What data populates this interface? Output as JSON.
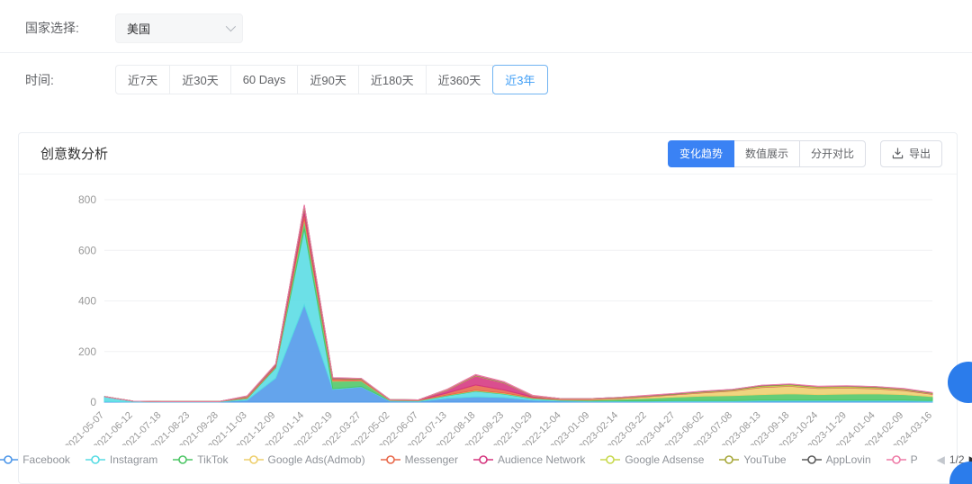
{
  "filters": {
    "country_label": "国家选择:",
    "country_value": "美国",
    "time_label": "时间:",
    "time_options": [
      "近7天",
      "近30天",
      "60 Days",
      "近90天",
      "近180天",
      "近360天",
      "近3年"
    ],
    "time_selected": "近3年"
  },
  "panel": {
    "title": "创意数分析",
    "view_tabs": [
      "变化趋势",
      "数值展示",
      "分开对比"
    ],
    "view_selected": "变化趋势",
    "export_label": "导出"
  },
  "legend": {
    "pagination": "1/2",
    "prev_icon": "◀",
    "next_icon": "▶"
  },
  "colors": {
    "accent_blue": "#3a82f4",
    "selected_time_blue": "#3f9ef6",
    "fab_blue": "#2b7ceb",
    "axis_text": "#999999",
    "gridline": "#f0f1f3",
    "axis_line": "#dcdfe6"
  },
  "chart_data": {
    "type": "area",
    "stacked": true,
    "title": "创意数分析",
    "xlabel": "",
    "ylabel": "",
    "ylim": [
      0,
      800
    ],
    "yticks": [
      0,
      200,
      400,
      600,
      800
    ],
    "grid": true,
    "legend_position": "bottom",
    "categories": [
      "2021-05-07",
      "2021-06-12",
      "2021-07-18",
      "2021-08-23",
      "2021-09-28",
      "2021-11-03",
      "2021-12-09",
      "2022-01-14",
      "2022-02-19",
      "2022-03-27",
      "2022-05-02",
      "2022-06-07",
      "2022-07-13",
      "2022-08-18",
      "2022-09-23",
      "2022-10-29",
      "2022-12-04",
      "2023-01-09",
      "2023-02-14",
      "2023-03-22",
      "2023-04-27",
      "2023-06-02",
      "2023-07-08",
      "2023-08-13",
      "2023-09-18",
      "2023-10-24",
      "2023-11-29",
      "2024-01-04",
      "2024-02-09",
      "2024-03-16"
    ],
    "series": [
      {
        "name": "Facebook",
        "color": "#4e97e9",
        "values": [
          2,
          1,
          1,
          1,
          1,
          8,
          95,
          385,
          50,
          60,
          4,
          3,
          15,
          21,
          18,
          8,
          4,
          3,
          3,
          3,
          3,
          3,
          3,
          4,
          4,
          4,
          4,
          4,
          4,
          3
        ]
      },
      {
        "name": "Instagram",
        "color": "#58dce4",
        "values": [
          20,
          3,
          1,
          1,
          1,
          6,
          40,
          300,
          3,
          2,
          2,
          2,
          10,
          22,
          14,
          6,
          3,
          2,
          2,
          2,
          3,
          3,
          3,
          4,
          4,
          4,
          4,
          4,
          4,
          3
        ]
      },
      {
        "name": "TikTok",
        "color": "#4ec666",
        "values": [
          0,
          0,
          0,
          0,
          0,
          2,
          4,
          36,
          30,
          22,
          1,
          1,
          2,
          2,
          2,
          2,
          2,
          3,
          6,
          10,
          14,
          18,
          20,
          22,
          25,
          22,
          24,
          25,
          22,
          16
        ]
      },
      {
        "name": "Google Ads(Admob)",
        "color": "#eecf6d",
        "values": [
          0,
          0,
          0,
          0,
          0,
          1,
          1,
          5,
          2,
          1,
          1,
          1,
          1,
          2,
          2,
          1,
          1,
          2,
          3,
          6,
          9,
          13,
          18,
          28,
          30,
          24,
          24,
          20,
          16,
          9
        ]
      },
      {
        "name": "Messenger",
        "color": "#e8684a",
        "values": [
          0,
          0,
          0,
          0,
          0,
          2,
          3,
          20,
          6,
          4,
          1,
          1,
          8,
          21,
          12,
          3,
          1,
          1,
          1,
          1,
          1,
          1,
          1,
          1,
          1,
          1,
          1,
          1,
          1,
          1
        ]
      },
      {
        "name": "Audience Network",
        "color": "#d5367f",
        "values": [
          0,
          0,
          0,
          0,
          0,
          2,
          4,
          25,
          2,
          1,
          1,
          1,
          12,
          36,
          28,
          4,
          1,
          1,
          1,
          1,
          1,
          1,
          1,
          1,
          1,
          1,
          1,
          1,
          1,
          1
        ]
      },
      {
        "name": "Google Adsense",
        "color": "#c8d94f",
        "values": [
          0,
          0,
          0,
          0,
          0,
          1,
          1,
          3,
          1,
          1,
          0,
          0,
          1,
          1,
          1,
          1,
          1,
          1,
          1,
          1,
          1,
          2,
          2,
          3,
          3,
          3,
          3,
          3,
          2,
          2
        ]
      },
      {
        "name": "YouTube",
        "color": "#a8a93c",
        "values": [
          0,
          0,
          0,
          0,
          0,
          1,
          1,
          2,
          1,
          1,
          0,
          0,
          1,
          1,
          1,
          1,
          1,
          1,
          1,
          1,
          1,
          1,
          1,
          2,
          2,
          2,
          2,
          2,
          2,
          1
        ]
      },
      {
        "name": "AppLovin",
        "color": "#5b5b5b",
        "values": [
          0,
          0,
          0,
          0,
          0,
          1,
          1,
          2,
          1,
          1,
          0,
          0,
          0,
          1,
          1,
          0,
          0,
          0,
          1,
          1,
          1,
          1,
          1,
          1,
          1,
          1,
          1,
          1,
          1,
          1
        ]
      },
      {
        "name": "P",
        "color": "#ee7ca7",
        "values": [
          0,
          0,
          0,
          0,
          0,
          1,
          1,
          2,
          1,
          1,
          0,
          0,
          1,
          2,
          2,
          1,
          0,
          0,
          0,
          1,
          1,
          1,
          1,
          1,
          1,
          1,
          1,
          1,
          1,
          1
        ]
      }
    ]
  }
}
